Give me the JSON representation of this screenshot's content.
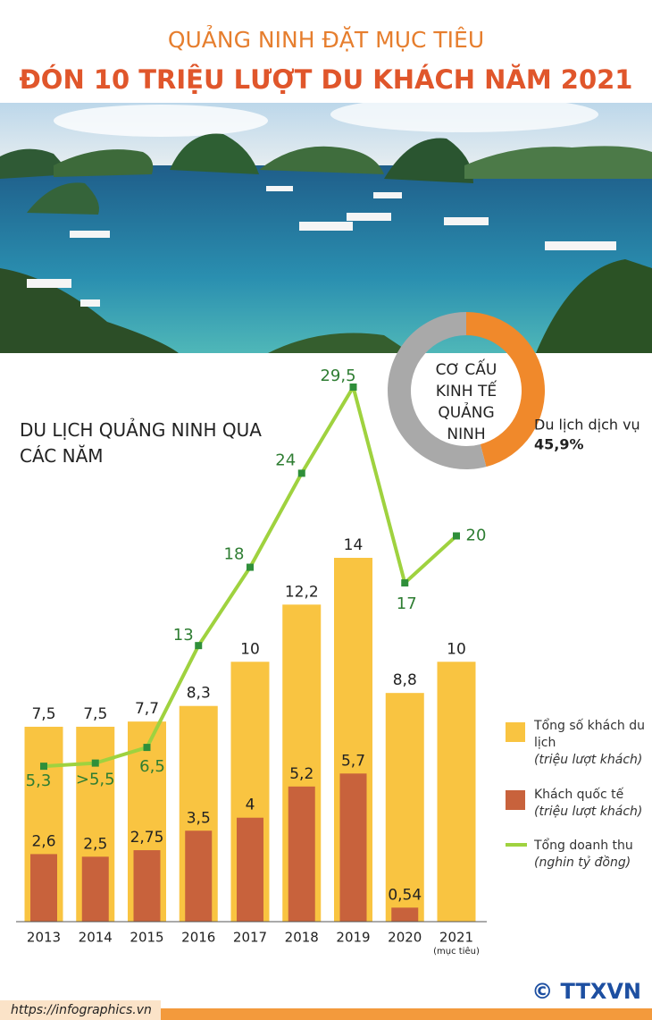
{
  "header": {
    "subtitle": "QUẢNG NINH ĐẶT MỤC TIÊU",
    "title": "ĐÓN 10 TRIỆU LƯỢT DU KHÁCH NĂM 2021"
  },
  "chart_data": [
    {
      "type": "bar",
      "title": "DU LỊCH QUẢNG NINH QUA CÁC NĂM",
      "categories": [
        "2013",
        "2014",
        "2015",
        "2016",
        "2017",
        "2018",
        "2019",
        "2020",
        "2021"
      ],
      "category_note": "(mục tiêu)",
      "series": [
        {
          "name": "Tổng số khách du lịch",
          "unit": "(triệu lượt khách)",
          "color": "#f9c441",
          "values": [
            7.5,
            7.5,
            7.7,
            8.3,
            10,
            12.2,
            14,
            8.8,
            10
          ],
          "value_labels": [
            "7,5",
            "7,5",
            "7,7",
            "8,3",
            "10",
            "12,2",
            "14",
            "8,8",
            "10"
          ]
        },
        {
          "name": "Khách quốc tế",
          "unit": "(triệu lượt khách)",
          "color": "#c8623c",
          "values": [
            2.6,
            2.5,
            2.75,
            3.5,
            4,
            5.2,
            5.7,
            0.54,
            null
          ],
          "value_labels": [
            "2,6",
            "2,5",
            "2,75",
            "3,5",
            "4",
            "5,2",
            "5,7",
            "0,54",
            null
          ]
        },
        {
          "name": "Tổng doanh thu",
          "unit": "(nghin tỷ đồng)",
          "type": "line",
          "axis": "y2",
          "color": "#9fd23f",
          "marker_color": "#2f8f3a",
          "values": [
            5.3,
            5.5,
            6.5,
            13,
            18,
            24,
            29.5,
            17,
            20
          ],
          "value_labels": [
            "5,3",
            ">5,5",
            "6,5",
            "13",
            "18",
            "24",
            "29,5",
            "17",
            "20"
          ]
        }
      ],
      "ylim": [
        0,
        14
      ],
      "y2lim": [
        0,
        29.5
      ]
    },
    {
      "type": "pie",
      "title": "CƠ CẤU KINH TẾ QUẢNG NINH",
      "categories": [
        "Du lịch dịch vụ",
        null
      ],
      "values": [
        45.9,
        54.1
      ],
      "value_labels": [
        "45,9%",
        null
      ],
      "colors": [
        "#f0892b",
        "#a9a9a9"
      ],
      "donut": true
    }
  ],
  "footer": {
    "url": "https://infographics.vn",
    "credit": "© TTXVN"
  }
}
